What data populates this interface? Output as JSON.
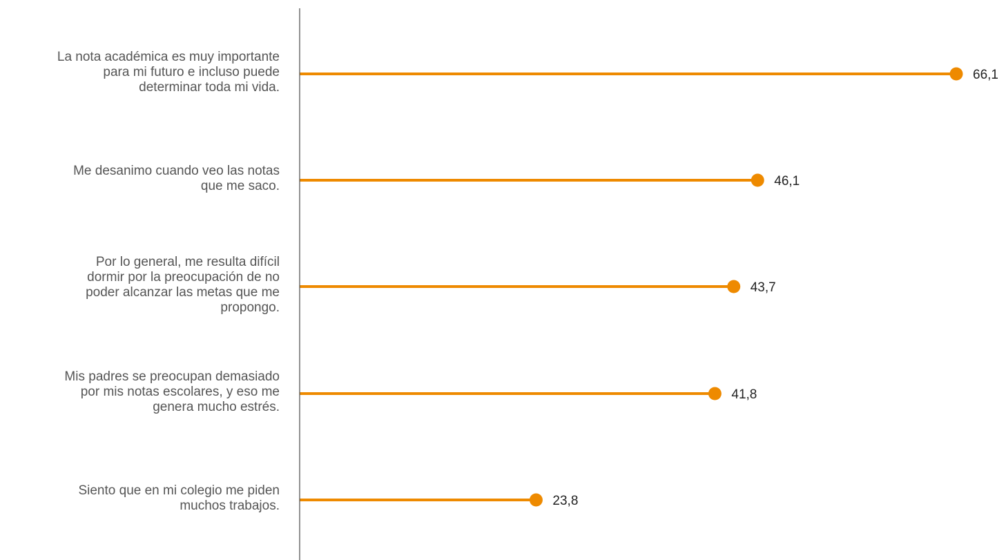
{
  "chart_data": {
    "type": "lollipop",
    "orientation": "horizontal",
    "categories": [
      "La nota académica es muy importante\npara mi futuro e incluso puede\ndeterminar toda mi vida.",
      "Me desanimo cuando veo las notas\nque me saco.",
      "Por lo general, me resulta difícil\ndormir por la preocupación de no\npoder alcanzar las metas que me\npropongo.",
      "Mis padres se preocupan demasiado\npor mis notas escolares, y eso me\ngenera mucho estrés.",
      "Siento que en mi colegio me piden\nmuchos trabajos."
    ],
    "values": [
      66.1,
      46.1,
      43.7,
      41.8,
      23.8
    ],
    "value_labels": [
      "66,1",
      "46,1",
      "43,7",
      "41,8",
      "23,8"
    ],
    "title": "",
    "xlabel": "",
    "ylabel": "",
    "xlim": [
      0,
      70
    ],
    "grid": false,
    "legend": "none",
    "colors": {
      "mark": "#EE8A00",
      "axis": "#555555",
      "category_text": "#555555",
      "value_text": "#222222"
    }
  }
}
